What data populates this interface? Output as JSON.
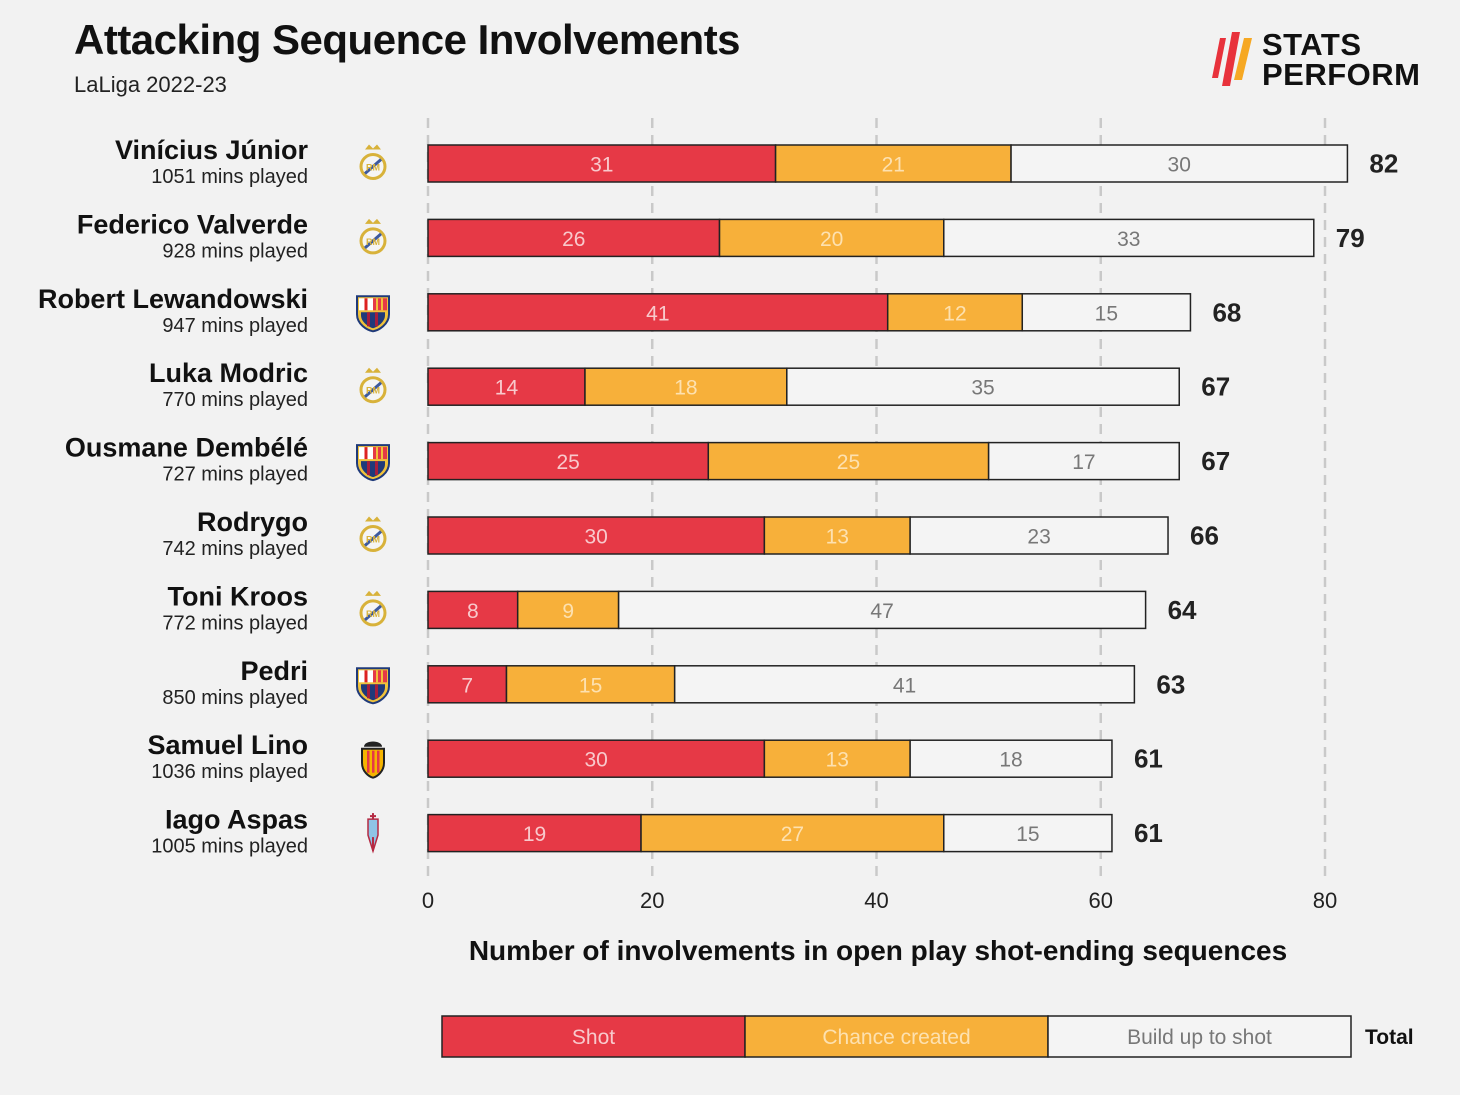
{
  "header": {
    "title": "Attacking Sequence Involvements",
    "subtitle": "LaLiga 2022-23",
    "logo_line1": "STATS",
    "logo_line2": "PERFORM"
  },
  "colors": {
    "shot": "#e63946",
    "chance_created": "#f7b03a",
    "build_up": "#f4f4f4",
    "logo_red": "#e8323c",
    "logo_orange": "#f6a823"
  },
  "chart_data": {
    "type": "bar",
    "orientation": "horizontal",
    "stacked": true,
    "xlabel": "Number of involvements in open play shot-ending sequences",
    "xlim": [
      0,
      80
    ],
    "xticks": [
      0,
      20,
      40,
      60,
      80
    ],
    "grid": "vertical dashed",
    "legend": "bottom",
    "legend_total_label": "Total",
    "categories": [
      {
        "name": "Vinícius Júnior",
        "mins": "1051 mins played",
        "club_icon": "real-madrid-crest-icon"
      },
      {
        "name": "Federico Valverde",
        "mins": "928 mins played",
        "club_icon": "real-madrid-crest-icon"
      },
      {
        "name": "Robert Lewandowski",
        "mins": "947 mins played",
        "club_icon": "barcelona-crest-icon"
      },
      {
        "name": "Luka Modric",
        "mins": "770 mins played",
        "club_icon": "real-madrid-crest-icon"
      },
      {
        "name": "Ousmane Dembélé",
        "mins": "727 mins played",
        "club_icon": "barcelona-crest-icon"
      },
      {
        "name": "Rodrygo",
        "mins": "742 mins played",
        "club_icon": "real-madrid-crest-icon"
      },
      {
        "name": "Toni Kroos",
        "mins": "772 mins played",
        "club_icon": "real-madrid-crest-icon"
      },
      {
        "name": "Pedri",
        "mins": "850 mins played",
        "club_icon": "barcelona-crest-icon"
      },
      {
        "name": "Samuel Lino",
        "mins": "1036 mins played",
        "club_icon": "valencia-crest-icon"
      },
      {
        "name": "Iago Aspas",
        "mins": "1005 mins played",
        "club_icon": "celta-vigo-crest-icon"
      }
    ],
    "series": [
      {
        "name": "Shot",
        "color": "#e63946",
        "text_color": "#f8c9cc",
        "values": [
          31,
          26,
          41,
          14,
          25,
          30,
          8,
          7,
          30,
          19
        ]
      },
      {
        "name": "Chance created",
        "color": "#f7b03a",
        "text_color": "#fde1b0",
        "values": [
          21,
          20,
          12,
          18,
          25,
          13,
          9,
          15,
          13,
          27
        ]
      },
      {
        "name": "Build up to shot",
        "color": "#f4f4f4",
        "text_color": "#777777",
        "values": [
          30,
          33,
          15,
          35,
          17,
          23,
          47,
          41,
          18,
          15
        ]
      }
    ],
    "totals": [
      82,
      79,
      68,
      67,
      67,
      66,
      64,
      63,
      61,
      61
    ]
  }
}
